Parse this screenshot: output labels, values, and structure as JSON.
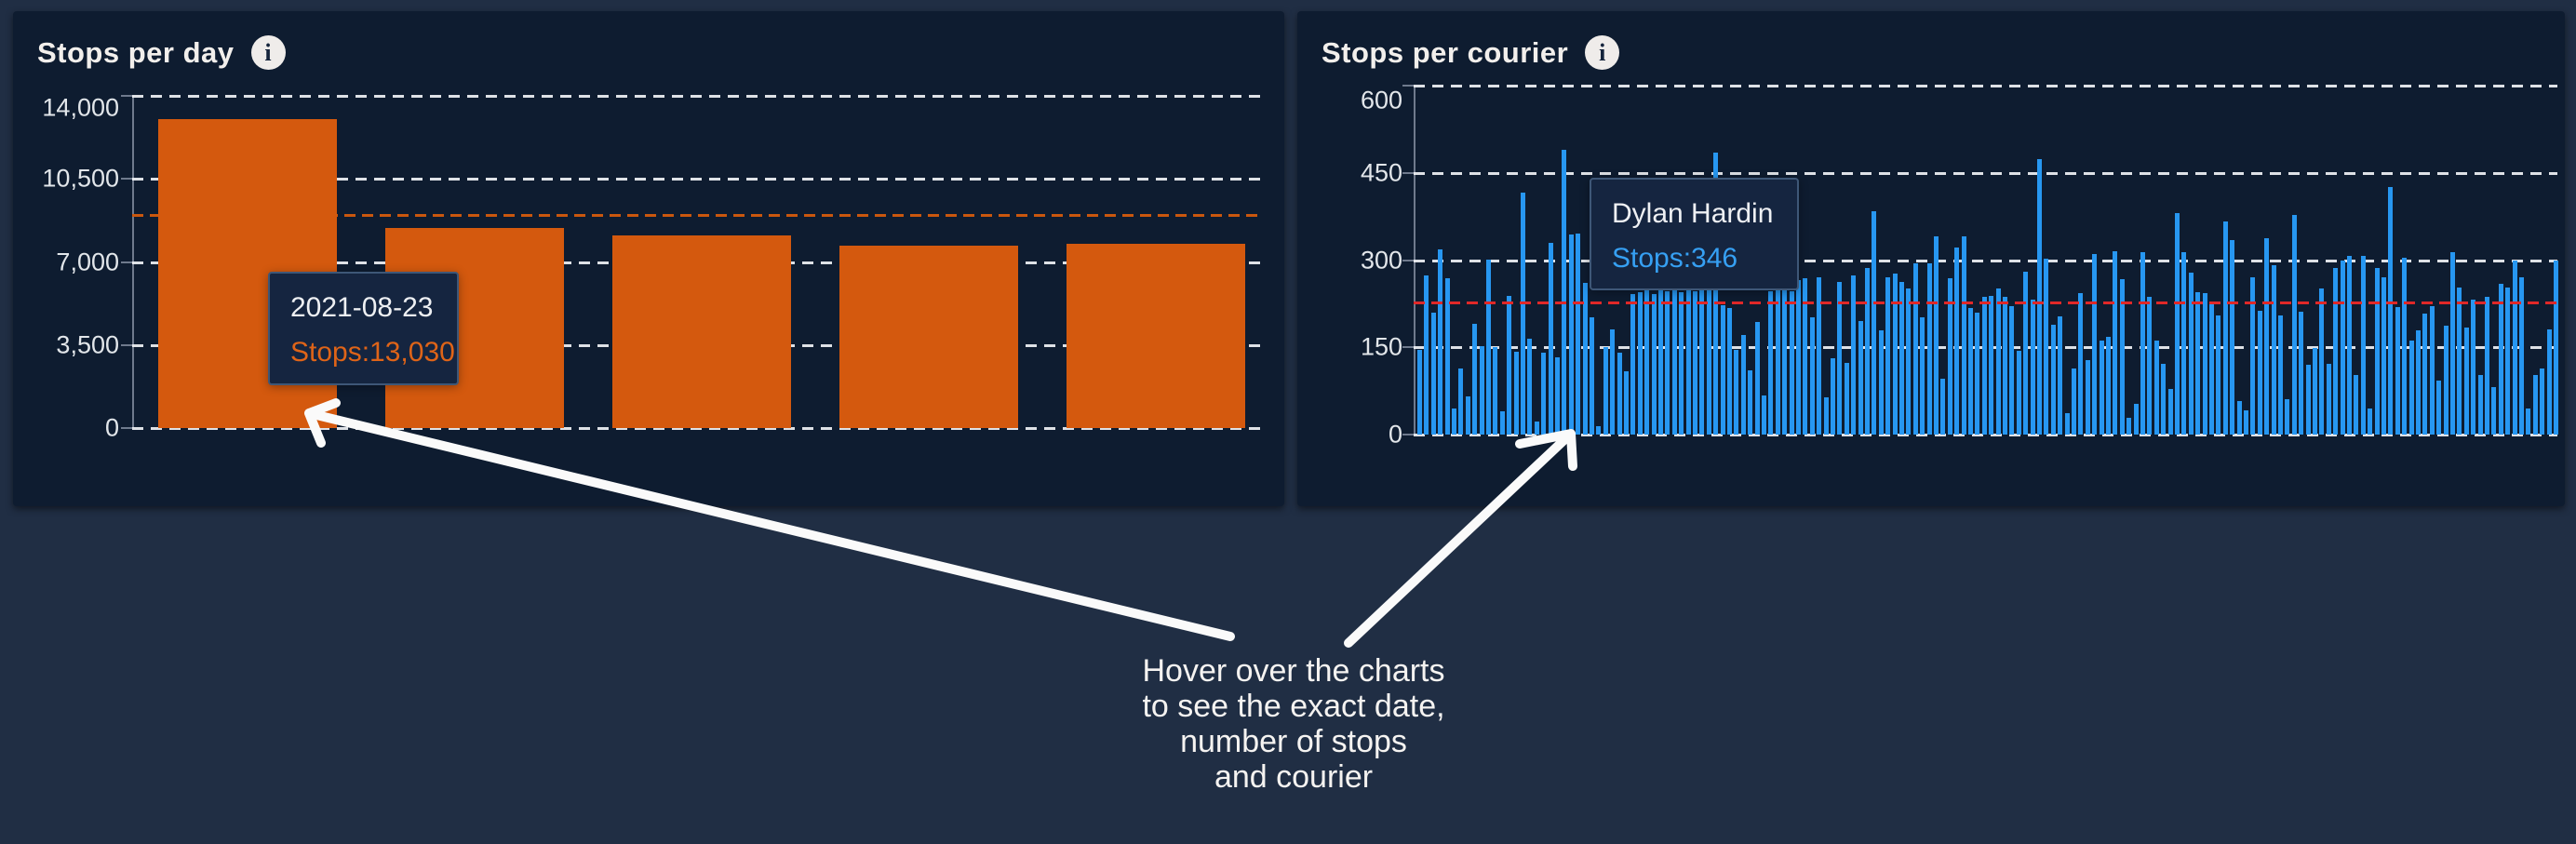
{
  "left_panel": {
    "title": "Stops per day",
    "info_icon_glyph": "i",
    "tooltip": {
      "line1": "2021-08-23",
      "line2": "Stops:13,030"
    }
  },
  "right_panel": {
    "title": "Stops per courier",
    "info_icon_glyph": "i",
    "tooltip": {
      "line1": "Dylan Hardin",
      "line2": "Stops:346"
    }
  },
  "annotation": {
    "line1": "Hover over the charts",
    "line2": "to see the exact date,",
    "line3": "number of stops",
    "line4": "and courier"
  },
  "colors": {
    "page_background": "#202e44",
    "panel_background": "#0e1c30",
    "orange_bar": "#d4590e",
    "orange_avg_line": "#c9570e",
    "blue_bar": "#2797f1",
    "red_avg_line": "#e02828",
    "gridline": "#f0f2f5",
    "tooltip_border": "#3e5777",
    "arrow": "#fafafa"
  },
  "chart_data": [
    {
      "type": "bar",
      "title": "Stops per day",
      "categories": [
        "2021-08-23",
        "",
        "",
        "",
        ""
      ],
      "values": [
        13030,
        8450,
        8100,
        7700,
        7750
      ],
      "ylim": [
        0,
        14000
      ],
      "ytick_values": [
        0,
        3500,
        7000,
        10500,
        14000
      ],
      "ytick_labels": [
        "0",
        "3,500",
        "7,000",
        "10,500",
        "14,000"
      ],
      "average_line": 9000,
      "grid": "horizontal-dashed",
      "tooltip": {
        "date": "2021-08-23",
        "stops": 13030
      }
    },
    {
      "type": "bar",
      "title": "Stops per courier",
      "values": [
        145,
        273,
        210,
        318,
        268,
        45,
        114,
        66,
        190,
        152,
        300,
        150,
        40,
        238,
        143,
        416,
        164,
        22,
        140,
        330,
        133,
        490,
        344,
        346,
        261,
        202,
        15,
        150,
        180,
        140,
        108,
        242,
        244,
        266,
        242,
        263,
        247,
        266,
        245,
        266,
        247,
        266,
        250,
        485,
        222,
        217,
        146,
        171,
        110,
        193,
        67,
        246,
        268,
        265,
        246,
        265,
        268,
        201,
        270,
        64,
        131,
        262,
        123,
        273,
        195,
        286,
        384,
        179,
        270,
        276,
        262,
        251,
        294,
        201,
        294,
        340,
        96,
        268,
        321,
        340,
        217,
        209,
        237,
        239,
        251,
        237,
        221,
        144,
        280,
        232,
        473,
        302,
        189,
        203,
        36,
        114,
        243,
        128,
        310,
        162,
        168,
        315,
        267,
        28,
        53,
        313,
        237,
        162,
        122,
        79,
        381,
        313,
        278,
        245,
        243,
        224,
        205,
        366,
        334,
        58,
        42,
        270,
        213,
        337,
        291,
        205,
        61,
        377,
        211,
        120,
        149,
        251,
        122,
        286,
        299,
        307,
        103,
        307,
        44,
        286,
        270,
        425,
        219,
        304,
        162,
        179,
        208,
        221,
        93,
        187,
        313,
        253,
        184,
        232,
        103,
        237,
        82,
        259,
        253,
        299,
        270,
        44,
        103,
        114,
        181,
        299
      ],
      "ylim": [
        0,
        600
      ],
      "ytick_values": [
        0,
        150,
        300,
        450,
        600
      ],
      "ytick_labels": [
        "0",
        "150",
        "300",
        "450",
        "600"
      ],
      "average_line": 228,
      "grid": "horizontal-dashed",
      "highlighted_bar": {
        "index": 23,
        "label": "Dylan Hardin",
        "value": 346
      }
    }
  ]
}
